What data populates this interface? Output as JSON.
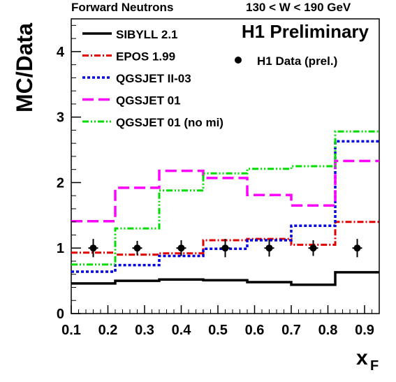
{
  "header": {
    "left": "Forward Neutrons",
    "right": "130 < W < 190 GeV"
  },
  "chart_data": {
    "type": "step",
    "title": "H1 Preliminary",
    "ylabel": "MC/Data",
    "xlabel": "x",
    "xlabel_sub": "F",
    "xlim": [
      0.1,
      0.94
    ],
    "ylim": [
      0,
      4.5
    ],
    "x_ticks": [
      "0.1",
      "0.2",
      "0.3",
      "0.4",
      "0.5",
      "0.6",
      "0.7",
      "0.8",
      "0.9"
    ],
    "y_ticks": [
      "0",
      "1",
      "2",
      "3",
      "4"
    ],
    "bin_edges": [
      0.1,
      0.22,
      0.34,
      0.46,
      0.58,
      0.7,
      0.82,
      0.94
    ],
    "series": [
      {
        "name": "SIBYLL 2.1",
        "style": "solid",
        "color": "#000000",
        "values": [
          0.46,
          0.5,
          0.52,
          0.51,
          0.48,
          0.44,
          0.63
        ]
      },
      {
        "name": "EPOS 1.99",
        "style": "dashdot",
        "color": "#e00000",
        "values": [
          0.93,
          0.9,
          0.92,
          1.12,
          1.14,
          1.05,
          1.4
        ]
      },
      {
        "name": "QGSJET II-03",
        "style": "dotted",
        "color": "#0000e0",
        "values": [
          0.64,
          0.74,
          0.88,
          0.99,
          1.12,
          1.34,
          2.63
        ]
      },
      {
        "name": "QGSJET 01",
        "style": "longdash",
        "color": "#ff00ff",
        "values": [
          1.41,
          1.92,
          2.18,
          2.07,
          1.81,
          1.65,
          2.33
        ]
      },
      {
        "name": "QGSJET 01 (no mi)",
        "style": "dashdotdot",
        "color": "#00dd00",
        "values": [
          0.75,
          1.3,
          1.88,
          2.14,
          2.21,
          2.25,
          2.78
        ]
      }
    ],
    "points": {
      "name": "H1 Data (prel.)",
      "x": [
        0.16,
        0.28,
        0.4,
        0.52,
        0.64,
        0.76,
        0.88
      ],
      "y": [
        1,
        1,
        1,
        1,
        1,
        1,
        1
      ],
      "yerr": [
        0.14,
        0.11,
        0.12,
        0.14,
        0.13,
        0.12,
        0.14
      ]
    },
    "grid": false,
    "legend_position": "top-left"
  }
}
